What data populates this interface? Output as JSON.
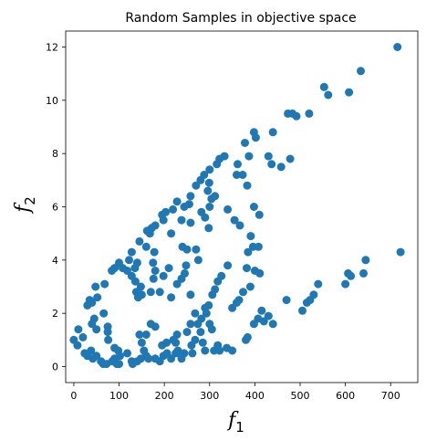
{
  "chart_data": {
    "type": "scatter",
    "title": "Random Samples in objective space",
    "xlabel": {
      "base": "f",
      "sub": "1"
    },
    "ylabel": {
      "base": "f",
      "sub": "2"
    },
    "xlim": [
      -18,
      760
    ],
    "ylim": [
      -0.6,
      12.6
    ],
    "xticks": [
      0,
      100,
      200,
      300,
      400,
      500,
      600,
      700
    ],
    "yticks": [
      0,
      2,
      4,
      6,
      8,
      10,
      12
    ],
    "grid": false,
    "marker_color": "#1f77b4",
    "points": [
      [
        715,
        12.0
      ],
      [
        722,
        4.3
      ],
      [
        634,
        11.1
      ],
      [
        608,
        10.3
      ],
      [
        562,
        10.2
      ],
      [
        553,
        10.5
      ],
      [
        520,
        9.5
      ],
      [
        492,
        9.4
      ],
      [
        483,
        9.5
      ],
      [
        473,
        9.5
      ],
      [
        478,
        7.8
      ],
      [
        458,
        7.5
      ],
      [
        437,
        7.6
      ],
      [
        430,
        7.9
      ],
      [
        440,
        8.8
      ],
      [
        398,
        8.8
      ],
      [
        402,
        8.6
      ],
      [
        378,
        8.4
      ],
      [
        387,
        7.9
      ],
      [
        362,
        7.6
      ],
      [
        373,
        7.2
      ],
      [
        383,
        6.8
      ],
      [
        360,
        7.2
      ],
      [
        333,
        7.9
      ],
      [
        322,
        7.8
      ],
      [
        316,
        7.6
      ],
      [
        300,
        7.4
      ],
      [
        288,
        7.2
      ],
      [
        280,
        7.0
      ],
      [
        270,
        6.8
      ],
      [
        299,
        6.9
      ],
      [
        296,
        6.6
      ],
      [
        304,
        6.3
      ],
      [
        312,
        6.4
      ],
      [
        300,
        6.0
      ],
      [
        290,
        5.6
      ],
      [
        258,
        6.4
      ],
      [
        255,
        6.1
      ],
      [
        244,
        6.0
      ],
      [
        228,
        6.2
      ],
      [
        219,
        5.9
      ],
      [
        203,
        5.8
      ],
      [
        195,
        5.7
      ],
      [
        198,
        5.5
      ],
      [
        180,
        5.3
      ],
      [
        172,
        5.2
      ],
      [
        168,
        5.0
      ],
      [
        162,
        5.1
      ],
      [
        215,
        5.0
      ],
      [
        238,
        5.5
      ],
      [
        258,
        5.4
      ],
      [
        282,
        5.8
      ],
      [
        298,
        5.2
      ],
      [
        340,
        5.9
      ],
      [
        355,
        5.5
      ],
      [
        367,
        5.3
      ],
      [
        398,
        6.0
      ],
      [
        410,
        5.7
      ],
      [
        391,
        4.9
      ],
      [
        385,
        4.3
      ],
      [
        396,
        4.5
      ],
      [
        408,
        4.5
      ],
      [
        400,
        3.6
      ],
      [
        411,
        3.5
      ],
      [
        382,
        3.7
      ],
      [
        390,
        3.0
      ],
      [
        374,
        2.8
      ],
      [
        365,
        2.5
      ],
      [
        360,
        2.4
      ],
      [
        350,
        2.2
      ],
      [
        340,
        3.8
      ],
      [
        326,
        3.4
      ],
      [
        318,
        3.2
      ],
      [
        312,
        2.9
      ],
      [
        306,
        2.7
      ],
      [
        298,
        2.3
      ],
      [
        293,
        2.0
      ],
      [
        290,
        2.2
      ],
      [
        282,
        1.8
      ],
      [
        274,
        1.6
      ],
      [
        300,
        1.6
      ],
      [
        305,
        1.4
      ],
      [
        275,
        4.0
      ],
      [
        270,
        4.4
      ],
      [
        250,
        4.4
      ],
      [
        240,
        4.5
      ],
      [
        248,
        3.8
      ],
      [
        245,
        3.5
      ],
      [
        238,
        3.3
      ],
      [
        228,
        3.1
      ],
      [
        210,
        3.7
      ],
      [
        198,
        3.4
      ],
      [
        180,
        3.6
      ],
      [
        175,
        3.9
      ],
      [
        178,
        4.3
      ],
      [
        160,
        4.5
      ],
      [
        145,
        4.7
      ],
      [
        128,
        4.3
      ],
      [
        122,
        4.0
      ],
      [
        140,
        3.9
      ],
      [
        135,
        3.7
      ],
      [
        118,
        3.6
      ],
      [
        108,
        3.7
      ],
      [
        100,
        3.9
      ],
      [
        90,
        3.7
      ],
      [
        84,
        3.6
      ],
      [
        128,
        3.4
      ],
      [
        136,
        3.2
      ],
      [
        148,
        3.0
      ],
      [
        138,
        2.8
      ],
      [
        150,
        2.7
      ],
      [
        142,
        2.6
      ],
      [
        176,
        3.3
      ],
      [
        170,
        2.8
      ],
      [
        190,
        2.8
      ],
      [
        215,
        2.6
      ],
      [
        258,
        2.7
      ],
      [
        268,
        2.0
      ],
      [
        258,
        1.6
      ],
      [
        250,
        1.3
      ],
      [
        228,
        1.2
      ],
      [
        220,
        1.0
      ],
      [
        225,
        0.9
      ],
      [
        205,
        0.9
      ],
      [
        195,
        0.8
      ],
      [
        180,
        1.5
      ],
      [
        170,
        1.6
      ],
      [
        160,
        1.2
      ],
      [
        150,
        0.9
      ],
      [
        145,
        1.2
      ],
      [
        68,
        3.1
      ],
      [
        48,
        3.0
      ],
      [
        52,
        2.6
      ],
      [
        40,
        2.4
      ],
      [
        30,
        2.3
      ],
      [
        35,
        2.5
      ],
      [
        66,
        2.0
      ],
      [
        45,
        1.8
      ],
      [
        40,
        1.6
      ],
      [
        50,
        1.4
      ],
      [
        75,
        1.5
      ],
      [
        75,
        1.3
      ],
      [
        76,
        1.0
      ],
      [
        10,
        1.4
      ],
      [
        20,
        1.1
      ],
      [
        0,
        1.0
      ],
      [
        8,
        0.8
      ],
      [
        24,
        0.5
      ],
      [
        30,
        0.4
      ],
      [
        38,
        0.6
      ],
      [
        42,
        0.3
      ],
      [
        50,
        0.4
      ],
      [
        60,
        0.2
      ],
      [
        65,
        0.1
      ],
      [
        72,
        0.1
      ],
      [
        90,
        0.7
      ],
      [
        98,
        0.6
      ],
      [
        102,
        0.4
      ],
      [
        90,
        0.3
      ],
      [
        85,
        0.2
      ],
      [
        95,
        0.1
      ],
      [
        100,
        0.1
      ],
      [
        118,
        0.5
      ],
      [
        128,
        0.2
      ],
      [
        130,
        0.1
      ],
      [
        140,
        0.2
      ],
      [
        148,
        0.3
      ],
      [
        155,
        0.6
      ],
      [
        160,
        0.4
      ],
      [
        165,
        0.3
      ],
      [
        180,
        0.3
      ],
      [
        190,
        0.2
      ],
      [
        198,
        0.4
      ],
      [
        206,
        0.5
      ],
      [
        215,
        0.3
      ],
      [
        225,
        0.5
      ],
      [
        230,
        0.6
      ],
      [
        238,
        0.4
      ],
      [
        244,
        0.5
      ],
      [
        238,
        0.3
      ],
      [
        262,
        0.5
      ],
      [
        260,
        0.8
      ],
      [
        268,
        1.0
      ],
      [
        280,
        1.3
      ],
      [
        285,
        0.9
      ],
      [
        290,
        0.6
      ],
      [
        310,
        0.6
      ],
      [
        322,
        0.6
      ],
      [
        318,
        0.8
      ],
      [
        338,
        0.7
      ],
      [
        350,
        0.6
      ],
      [
        380,
        1.0
      ],
      [
        384,
        1.1
      ],
      [
        398,
        1.6
      ],
      [
        407,
        1.8
      ],
      [
        420,
        1.7
      ],
      [
        415,
        2.1
      ],
      [
        430,
        1.9
      ],
      [
        440,
        1.6
      ],
      [
        470,
        2.5
      ],
      [
        505,
        2.1
      ],
      [
        515,
        2.4
      ],
      [
        522,
        2.5
      ],
      [
        530,
        2.7
      ],
      [
        540,
        3.1
      ],
      [
        600,
        3.1
      ],
      [
        606,
        3.5
      ],
      [
        612,
        3.4
      ],
      [
        640,
        3.5
      ],
      [
        645,
        4.0
      ]
    ]
  }
}
